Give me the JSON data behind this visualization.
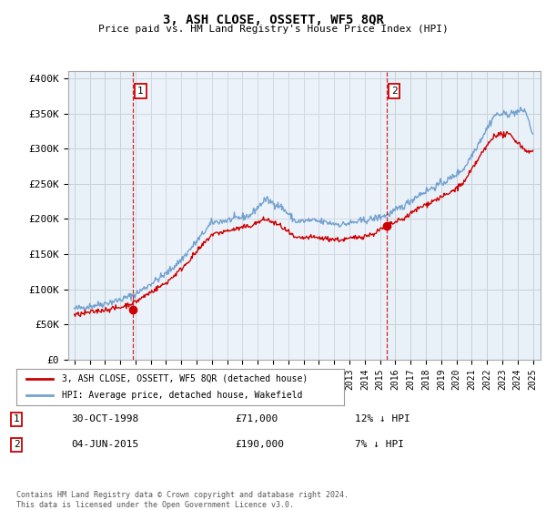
{
  "title": "3, ASH CLOSE, OSSETT, WF5 8QR",
  "subtitle": "Price paid vs. HM Land Registry's House Price Index (HPI)",
  "ylim": [
    0,
    410000
  ],
  "yticks": [
    0,
    50000,
    100000,
    150000,
    200000,
    250000,
    300000,
    350000,
    400000
  ],
  "ytick_labels": [
    "£0",
    "£50K",
    "£100K",
    "£150K",
    "£200K",
    "£250K",
    "£300K",
    "£350K",
    "£400K"
  ],
  "hpi_color": "#6699cc",
  "price_color": "#cc0000",
  "annotation_box_color": "#cc0000",
  "chart_bg_color": "#e8f0f8",
  "background_color": "#ffffff",
  "grid_color": "#c8d0d8",
  "sale1_date": "30-OCT-1998",
  "sale1_price": 71000,
  "sale1_hpi_diff": "12% ↓ HPI",
  "sale2_date": "04-JUN-2015",
  "sale2_price": 190000,
  "sale2_hpi_diff": "7% ↓ HPI",
  "legend_label1": "3, ASH CLOSE, OSSETT, WF5 8QR (detached house)",
  "legend_label2": "HPI: Average price, detached house, Wakefield",
  "footnote": "Contains HM Land Registry data © Crown copyright and database right 2024.\nThis data is licensed under the Open Government Licence v3.0.",
  "sale1_x": 1998.83,
  "sale2_x": 2015.42
}
